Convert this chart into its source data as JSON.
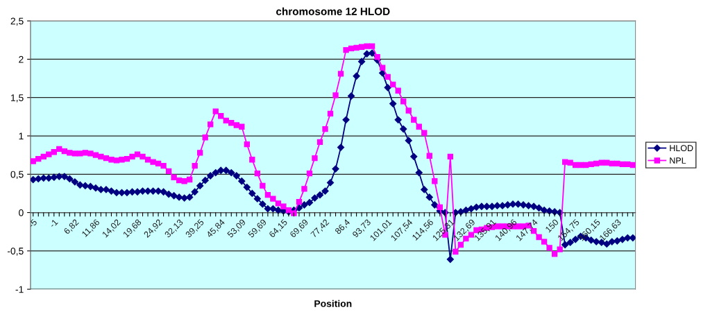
{
  "chart_data": {
    "type": "line",
    "title": "chromosome 12 HLOD",
    "xlabel": "Position",
    "categories": [
      "-5",
      null,
      null,
      null,
      "-1",
      null,
      null,
      null,
      "6,82",
      null,
      null,
      null,
      "11,86",
      null,
      null,
      null,
      "14,02",
      null,
      null,
      null,
      "19,68",
      null,
      null,
      null,
      "24,92",
      null,
      null,
      null,
      "32,13",
      null,
      null,
      null,
      "39,25",
      null,
      null,
      null,
      "45,84",
      null,
      null,
      null,
      "53,09",
      null,
      null,
      null,
      "59,69",
      null,
      null,
      null,
      "64,15",
      null,
      null,
      null,
      "69,69",
      null,
      null,
      null,
      "77,42",
      null,
      null,
      null,
      "86,4",
      null,
      null,
      null,
      "93,73",
      null,
      null,
      null,
      "101,01",
      null,
      null,
      null,
      "107,54",
      null,
      null,
      null,
      "114,56",
      null,
      null,
      null,
      "125,31",
      null,
      null,
      null,
      "132,69",
      null,
      null,
      null,
      "135,91",
      null,
      null,
      null,
      "140,96",
      null,
      null,
      null,
      "147,74",
      null,
      null,
      null,
      "150",
      null,
      null,
      null,
      "154,75",
      null,
      null,
      null,
      "160,15",
      null,
      null,
      null,
      "166,63",
      null,
      null,
      null
    ],
    "series": [
      {
        "name": "HLOD",
        "color": "#000080",
        "marker": "diamond",
        "values": [
          0.43,
          0.44,
          0.45,
          0.45,
          0.46,
          0.47,
          0.47,
          0.44,
          0.4,
          0.36,
          0.35,
          0.34,
          0.32,
          0.3,
          0.3,
          0.28,
          0.26,
          0.26,
          0.26,
          0.27,
          0.27,
          0.28,
          0.28,
          0.28,
          0.28,
          0.27,
          0.24,
          0.22,
          0.2,
          0.19,
          0.2,
          0.27,
          0.35,
          0.42,
          0.48,
          0.52,
          0.55,
          0.55,
          0.52,
          0.48,
          0.41,
          0.33,
          0.25,
          0.18,
          0.11,
          0.05,
          0.05,
          0.03,
          0.02,
          0.01,
          0.03,
          0.06,
          0.1,
          0.13,
          0.19,
          0.23,
          0.28,
          0.39,
          0.57,
          0.85,
          1.21,
          1.52,
          1.78,
          1.97,
          2.07,
          2.08,
          1.99,
          1.82,
          1.63,
          1.42,
          1.21,
          1.09,
          0.94,
          0.73,
          0.52,
          0.3,
          0.2,
          0.1,
          0.02,
          0.0,
          -0.61,
          0.0,
          0.01,
          0.03,
          0.05,
          0.07,
          0.08,
          0.08,
          0.08,
          0.09,
          0.09,
          0.1,
          0.11,
          0.11,
          0.1,
          0.09,
          0.08,
          0.06,
          0.03,
          0.02,
          0.01,
          0.0,
          -0.42,
          -0.39,
          -0.35,
          -0.31,
          -0.33,
          -0.36,
          -0.38,
          -0.39,
          -0.41,
          -0.38,
          -0.37,
          -0.35,
          -0.33,
          -0.33
        ]
      },
      {
        "name": "NPL",
        "color": "#ff00ff",
        "marker": "square",
        "values": [
          0.67,
          0.7,
          0.73,
          0.76,
          0.79,
          0.83,
          0.8,
          0.78,
          0.77,
          0.77,
          0.78,
          0.77,
          0.75,
          0.73,
          0.71,
          0.69,
          0.68,
          0.69,
          0.7,
          0.73,
          0.76,
          0.73,
          0.69,
          0.66,
          0.64,
          0.61,
          0.54,
          0.46,
          0.42,
          0.41,
          0.43,
          0.61,
          0.78,
          0.98,
          1.15,
          1.32,
          1.26,
          1.2,
          1.17,
          1.14,
          1.12,
          0.89,
          0.69,
          0.51,
          0.35,
          0.23,
          0.18,
          0.12,
          0.08,
          0.03,
          -0.01,
          0.14,
          0.31,
          0.51,
          0.71,
          0.92,
          1.09,
          1.29,
          1.53,
          1.81,
          2.12,
          2.14,
          2.15,
          2.16,
          2.17,
          2.17,
          2.03,
          1.89,
          1.77,
          1.67,
          1.59,
          1.45,
          1.33,
          1.21,
          1.12,
          1.04,
          0.74,
          0.41,
          0.07,
          -0.29,
          0.73,
          -0.51,
          -0.42,
          -0.34,
          -0.29,
          -0.23,
          -0.22,
          -0.2,
          -0.19,
          -0.18,
          -0.18,
          -0.18,
          -0.18,
          -0.18,
          -0.18,
          -0.17,
          -0.24,
          -0.32,
          -0.38,
          -0.46,
          -0.54,
          -0.48,
          0.66,
          0.65,
          0.62,
          0.62,
          0.62,
          0.63,
          0.64,
          0.65,
          0.65,
          0.64,
          0.64,
          0.63,
          0.63,
          0.62
        ]
      }
    ],
    "ylim": [
      -1,
      2.5
    ],
    "yticks": [
      {
        "value": -1,
        "label": "-1"
      },
      {
        "value": -0.5,
        "label": "-0,5"
      },
      {
        "value": 0,
        "label": "0"
      },
      {
        "value": 0.5,
        "label": "0,5"
      },
      {
        "value": 1,
        "label": "1"
      },
      {
        "value": 1.5,
        "label": "1,5"
      },
      {
        "value": 2,
        "label": "2"
      },
      {
        "value": 2.5,
        "label": "2,5"
      }
    ],
    "grid": "y",
    "legend": "right",
    "line_style": "solid"
  }
}
